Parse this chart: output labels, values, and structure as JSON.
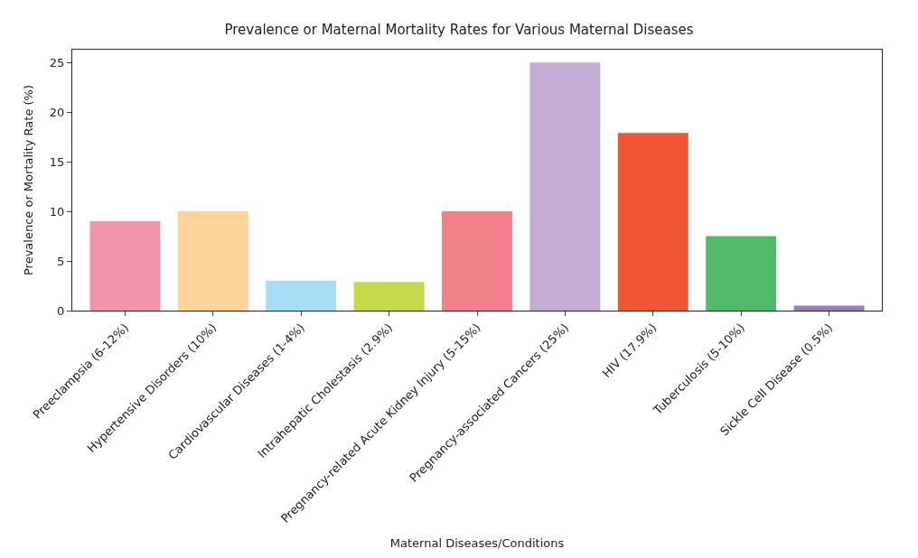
{
  "chart_data": {
    "type": "bar",
    "title": "Prevalence or Maternal Mortality Rates for Various Maternal Diseases",
    "xlabel": "Maternal Diseases/Conditions",
    "ylabel": "Prevalence or Mortality Rate (%)",
    "categories": [
      "Preeclampsia (6-12%)",
      "Hypertensive Disorders (10%)",
      "Cardiovascular Diseases (1-4%)",
      "Intrahepatic Cholestasis (2.9%)",
      "Pregnancy-related Acute Kidney Injury (5-15%)",
      "Pregnancy-associated Cancers (25%)",
      "HIV (17.9%)",
      "Tuberculosis (5-10%)",
      "Sickle Cell Disease (0.5%)"
    ],
    "values": [
      9,
      10,
      3,
      2.9,
      10,
      25,
      17.9,
      7.5,
      0.5
    ],
    "colors": [
      "#f295a8",
      "#fcd49c",
      "#a6def6",
      "#c5d94a",
      "#f2808a",
      "#c4aed3",
      "#ef5636",
      "#52bb6a",
      "#9a7ac4"
    ],
    "ylim": [
      0,
      26.3
    ],
    "yticks": [
      0,
      5,
      10,
      15,
      20,
      25
    ]
  }
}
